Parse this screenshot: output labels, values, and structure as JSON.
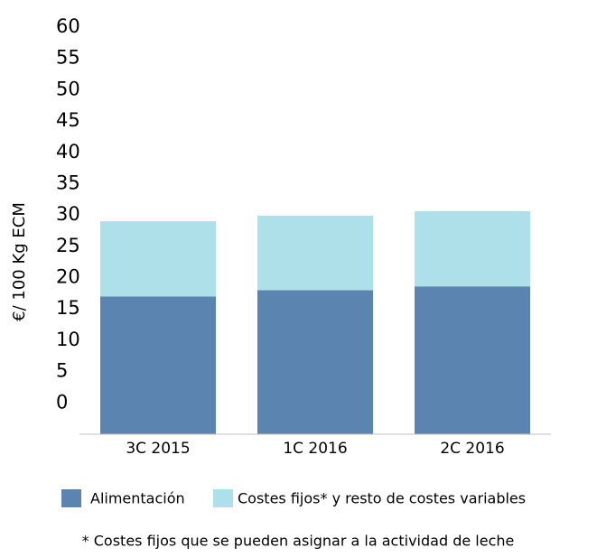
{
  "chart_data": {
    "type": "stacked_bar",
    "y_label": "€/ 100 Kg ECM",
    "categories": [
      "3C 2015",
      "1C 2016",
      "2C 2016"
    ],
    "series": [
      {
        "name": "Alimentación",
        "color": "#5b84b1",
        "values": [
          17,
          18,
          18.6
        ]
      },
      {
        "name": "Costes fijos* y resto de costes variables",
        "color": "#aee0ea",
        "values": [
          12,
          11.9,
          12
        ]
      }
    ],
    "ylim": [
      -5,
      60
    ],
    "yticks": [
      0,
      5,
      10,
      15,
      20,
      25,
      30,
      35,
      40,
      45,
      50,
      55,
      60
    ],
    "footnote": "* Costes fijos que se pueden asignar a la actividad de leche"
  }
}
